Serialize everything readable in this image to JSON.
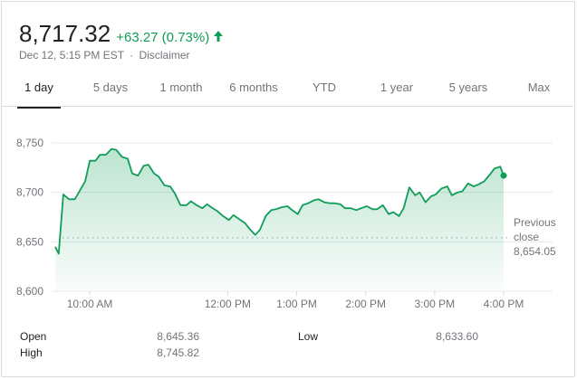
{
  "header": {
    "price": "8,717.32",
    "change": "+63.27 (0.73%)",
    "date": "Dec 12, 5:15 PM EST",
    "separator": "·",
    "disclaimer": "Disclaimer",
    "accent_color": "#0f9d58"
  },
  "tabs": [
    {
      "label": "1 day",
      "active": true
    },
    {
      "label": "5 days",
      "active": false
    },
    {
      "label": "1 month",
      "active": false
    },
    {
      "label": "6 months",
      "active": false
    },
    {
      "label": "YTD",
      "active": false
    },
    {
      "label": "1 year",
      "active": false
    },
    {
      "label": "5 years",
      "active": false
    },
    {
      "label": "Max",
      "active": false
    }
  ],
  "chart_data": {
    "type": "area",
    "title": "",
    "xlabel": "",
    "ylabel": "",
    "ylim": [
      8600,
      8750
    ],
    "xlim": [
      "09:30",
      "16:00"
    ],
    "y_ticks": [
      {
        "value": 8600,
        "label": "8,600"
      },
      {
        "value": 8650,
        "label": "8,650"
      },
      {
        "value": 8700,
        "label": "8,700"
      },
      {
        "value": 8750,
        "label": "8,750"
      }
    ],
    "x_ticks": [
      {
        "time": "10:00",
        "label": "10:00 AM"
      },
      {
        "time": "12:00",
        "label": "12:00 PM"
      },
      {
        "time": "13:00",
        "label": "1:00 PM"
      },
      {
        "time": "14:00",
        "label": "2:00 PM"
      },
      {
        "time": "15:00",
        "label": "3:00 PM"
      },
      {
        "time": "16:00",
        "label": "4:00 PM"
      }
    ],
    "grid": true,
    "line_color": "#0f9d58",
    "previous_close": {
      "value": 8654.05,
      "label_line1": "Previous",
      "label_line2": "close",
      "value_label": "8,654.05"
    },
    "series": [
      {
        "points": [
          [
            "09:30",
            8645
          ],
          [
            "09:33",
            8638
          ],
          [
            "09:37",
            8698
          ],
          [
            "09:42",
            8693
          ],
          [
            "09:47",
            8693
          ],
          [
            "09:52",
            8703
          ],
          [
            "09:56",
            8711
          ],
          [
            "10:00",
            8732
          ],
          [
            "10:05",
            8732
          ],
          [
            "10:09",
            8738
          ],
          [
            "10:14",
            8738
          ],
          [
            "10:19",
            8744
          ],
          [
            "10:23",
            8743
          ],
          [
            "10:28",
            8736
          ],
          [
            "10:33",
            8734
          ],
          [
            "10:37",
            8719
          ],
          [
            "10:42",
            8717
          ],
          [
            "10:47",
            8727
          ],
          [
            "10:51",
            8728
          ],
          [
            "10:56",
            8719
          ],
          [
            "11:00",
            8716
          ],
          [
            "11:05",
            8707
          ],
          [
            "11:10",
            8706
          ],
          [
            "11:14",
            8699
          ],
          [
            "11:19",
            8687
          ],
          [
            "11:24",
            8687
          ],
          [
            "11:28",
            8691
          ],
          [
            "11:33",
            8687
          ],
          [
            "11:38",
            8684
          ],
          [
            "11:42",
            8688
          ],
          [
            "11:47",
            8684
          ],
          [
            "11:51",
            8681
          ],
          [
            "11:56",
            8676
          ],
          [
            "12:01",
            8672
          ],
          [
            "12:05",
            8677
          ],
          [
            "12:10",
            8673
          ],
          [
            "12:15",
            8669
          ],
          [
            "12:19",
            8663
          ],
          [
            "12:24",
            8657
          ],
          [
            "12:28",
            8662
          ],
          [
            "12:33",
            8676
          ],
          [
            "12:38",
            8682
          ],
          [
            "12:42",
            8683
          ],
          [
            "12:47",
            8685
          ],
          [
            "12:52",
            8686
          ],
          [
            "12:56",
            8682
          ],
          [
            "13:01",
            8678
          ],
          [
            "13:05",
            8687
          ],
          [
            "13:10",
            8689
          ],
          [
            "13:15",
            8692
          ],
          [
            "13:19",
            8693
          ],
          [
            "13:24",
            8690
          ],
          [
            "13:29",
            8689
          ],
          [
            "13:33",
            8689
          ],
          [
            "13:38",
            8688
          ],
          [
            "13:42",
            8684
          ],
          [
            "13:47",
            8684
          ],
          [
            "13:52",
            8682
          ],
          [
            "13:56",
            8684
          ],
          [
            "14:01",
            8686
          ],
          [
            "14:06",
            8683
          ],
          [
            "14:10",
            8683
          ],
          [
            "14:15",
            8687
          ],
          [
            "14:20",
            8678
          ],
          [
            "14:24",
            8680
          ],
          [
            "14:29",
            8676
          ],
          [
            "14:33",
            8684
          ],
          [
            "14:38",
            8705
          ],
          [
            "14:43",
            8697
          ],
          [
            "14:47",
            8700
          ],
          [
            "14:52",
            8690
          ],
          [
            "14:57",
            8696
          ],
          [
            "15:01",
            8698
          ],
          [
            "15:06",
            8704
          ],
          [
            "15:11",
            8706
          ],
          [
            "15:15",
            8697
          ],
          [
            "15:20",
            8700
          ],
          [
            "15:24",
            8701
          ],
          [
            "15:29",
            8709
          ],
          [
            "15:34",
            8706
          ],
          [
            "15:38",
            8708
          ],
          [
            "15:43",
            8711
          ],
          [
            "15:48",
            8718
          ],
          [
            "15:52",
            8724
          ],
          [
            "15:57",
            8726
          ],
          [
            "16:00",
            8717
          ]
        ]
      }
    ]
  },
  "stats": {
    "open_label": "Open",
    "open_value": "8,645.36",
    "high_label": "High",
    "high_value": "8,745.82",
    "low_label": "Low",
    "low_value": "8,633.60"
  }
}
